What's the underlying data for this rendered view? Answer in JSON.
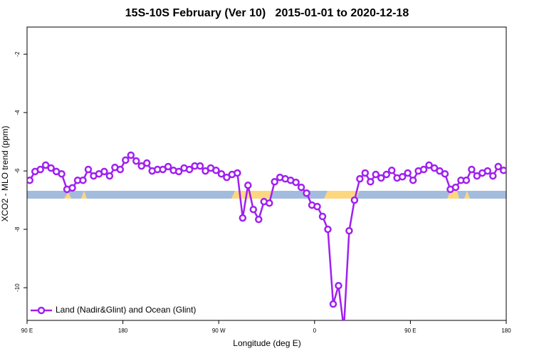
{
  "chart_data": {
    "type": "line",
    "title": "15S-10S February (Ver 10)   2015-01-01 to 2020-12-18",
    "xlabel": "Longitude (deg E)",
    "ylabel": "XCO2 - MLO trend (ppm)",
    "xlim": [
      90,
      540
    ],
    "xticks": [
      {
        "value": 90,
        "label": "90 E"
      },
      180,
      {
        "value": 270,
        "label": "90 W"
      },
      {
        "value": 360,
        "label": "0"
      },
      {
        "value": 450,
        "label": "90 E"
      },
      {
        "value": 540,
        "label": "180"
      }
    ],
    "ylim": [
      -11.12,
      -1.07
    ],
    "yticks": [
      -2,
      -4,
      -6,
      -8,
      -10
    ],
    "legend": "bottom-left",
    "x": [
      92.5,
      97.5,
      102.5,
      107.5,
      112.5,
      117.5,
      122.5,
      127.5,
      132.5,
      137.5,
      142.5,
      147.5,
      152.5,
      157.5,
      162.5,
      167.5,
      172.5,
      177.5,
      182.5,
      187.5,
      192.5,
      197.5,
      202.5,
      207.5,
      212.5,
      217.5,
      222.5,
      227.5,
      232.5,
      237.5,
      242.5,
      247.5,
      252.5,
      257.5,
      262.5,
      267.5,
      272.5,
      277.5,
      282.5,
      287.5,
      292.5,
      297.5,
      302.5,
      307.5,
      312.5,
      317.5,
      322.5,
      327.5,
      332.5,
      337.5,
      342.5,
      347.5,
      352.5,
      357.5,
      362.5,
      367.5,
      372.5,
      377.5,
      382.5,
      387.5,
      392.5,
      397.5,
      402.5,
      407.5,
      412.5,
      417.5,
      422.5,
      427.5,
      432.5,
      437.5,
      442.5,
      447.5,
      452.5,
      457.5,
      462.5,
      467.5,
      472.5,
      477.5,
      482.5,
      487.5,
      492.5,
      497.5,
      502.5,
      507.5,
      512.5,
      517.5,
      522.5,
      527.5,
      532.5,
      537.5
    ],
    "series": [
      {
        "name": "Land (Nadir&Glint) and Ocean (Glint)",
        "color": "#a020f0",
        "values": [
          -6.32,
          -6.02,
          -5.95,
          -5.8,
          -5.9,
          -6.02,
          -6.1,
          -6.63,
          -6.58,
          -6.32,
          -6.32,
          -5.95,
          -6.17,
          -6.1,
          -6.02,
          -6.17,
          -5.88,
          -5.95,
          -5.63,
          -5.46,
          -5.66,
          -5.83,
          -5.73,
          -6.0,
          -5.95,
          -5.95,
          -5.85,
          -5.98,
          -6.02,
          -5.9,
          -5.95,
          -5.83,
          -5.83,
          -6.0,
          -5.9,
          -5.98,
          -6.1,
          -6.22,
          -6.12,
          -6.07,
          -7.61,
          -6.49,
          -7.32,
          -7.66,
          -7.05,
          -7.1,
          -6.37,
          -6.22,
          -6.27,
          -6.32,
          -6.39,
          -6.56,
          -6.76,
          -7.17,
          -7.22,
          -7.56,
          -8.0,
          -10.56,
          -9.93,
          -11.4,
          -8.05,
          -7.0,
          -6.27,
          -6.07,
          -6.37,
          -6.12,
          -6.24,
          -6.12,
          -5.98,
          -6.24,
          -6.2,
          -6.07,
          -6.32,
          -6.0,
          -5.95,
          -5.8,
          -5.9,
          -6.0,
          -6.1,
          -6.63,
          -6.56,
          -6.32,
          -6.32,
          -5.95,
          -6.17,
          -6.07,
          -6.0,
          -6.17,
          -5.85,
          -5.98
        ]
      }
    ]
  }
}
